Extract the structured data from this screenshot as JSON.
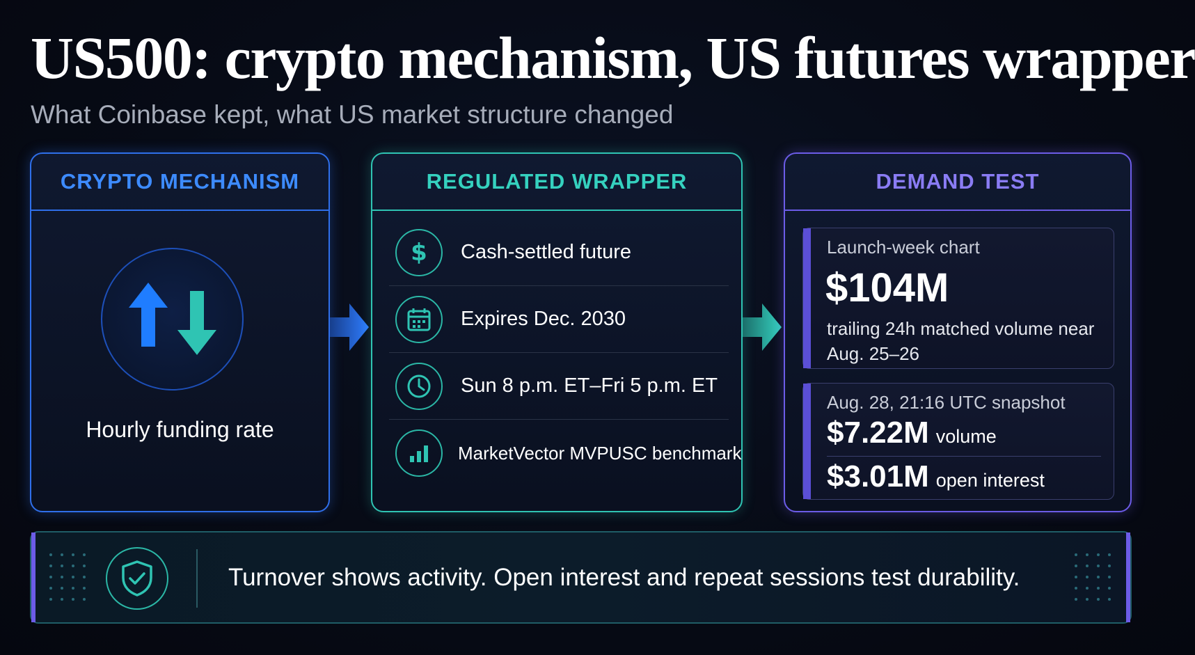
{
  "header": {
    "title": "US500: crypto mechanism, US futures wrapper",
    "subtitle": "What Coinbase kept, what US market structure changed"
  },
  "colors": {
    "blue": "#2f6fea",
    "teal": "#2fc4b3",
    "purple": "#6c5ce7",
    "background": "#070b16"
  },
  "panels": {
    "mechanism": {
      "heading": "CRYPTO MECHANISM",
      "icon": "up-down-arrows-icon",
      "label": "Hourly funding rate"
    },
    "wrapper": {
      "heading": "REGULATED WRAPPER",
      "items": [
        {
          "icon": "dollar-icon",
          "text": "Cash-settled future"
        },
        {
          "icon": "calendar-icon",
          "text": "Expires Dec. 2030"
        },
        {
          "icon": "clock-icon",
          "text": "Sun 8 p.m. ET–Fri 5 p.m. ET"
        },
        {
          "icon": "bar-chart-icon",
          "text": "MarketVector MVPUSC benchmark"
        }
      ]
    },
    "demand": {
      "heading": "DEMAND TEST",
      "card1": {
        "label": "Launch-week chart",
        "value": "$104M",
        "description": "trailing 24h matched volume near Aug. 25–26"
      },
      "card2": {
        "label": "Aug. 28, 21:16 UTC snapshot",
        "volume_value": "$7.22M",
        "volume_unit": "volume",
        "oi_value": "$3.01M",
        "oi_unit": "open interest"
      }
    }
  },
  "footer": {
    "icon": "shield-check-icon",
    "text": "Turnover shows activity. Open interest and repeat sessions test durability."
  }
}
